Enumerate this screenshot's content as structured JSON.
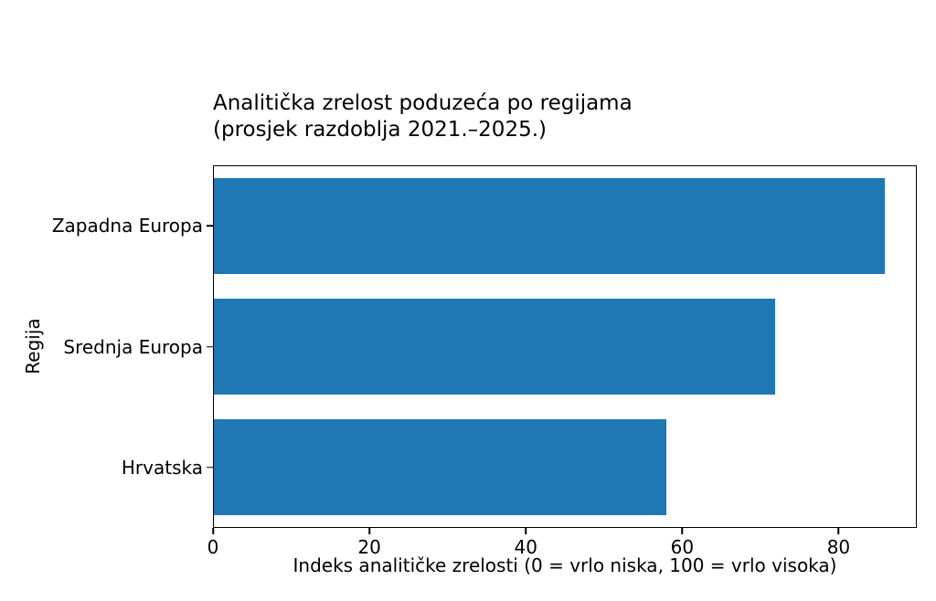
{
  "chart_data": {
    "type": "bar",
    "orientation": "horizontal",
    "title": "Analitička zrelost poduzeća po regijama\n(prosjek razdoblja 2021.–2025.)",
    "categories": [
      "Zapadna Europa",
      "Srednja Europa",
      "Hrvatska"
    ],
    "values": [
      86,
      72,
      58
    ],
    "xlabel": "Indeks analitičke zrelosti (0 = vrlo niska, 100 = vrlo visoka)",
    "ylabel": "Regija",
    "xlim": [
      0,
      90
    ],
    "xticks": [
      0,
      20,
      40,
      60,
      80
    ],
    "bar_color": "#1f77b4",
    "background_color": "#ffffff",
    "spine_color": "#000000",
    "grid": false,
    "legend": null,
    "bar_fraction_of_slot": 0.8
  }
}
